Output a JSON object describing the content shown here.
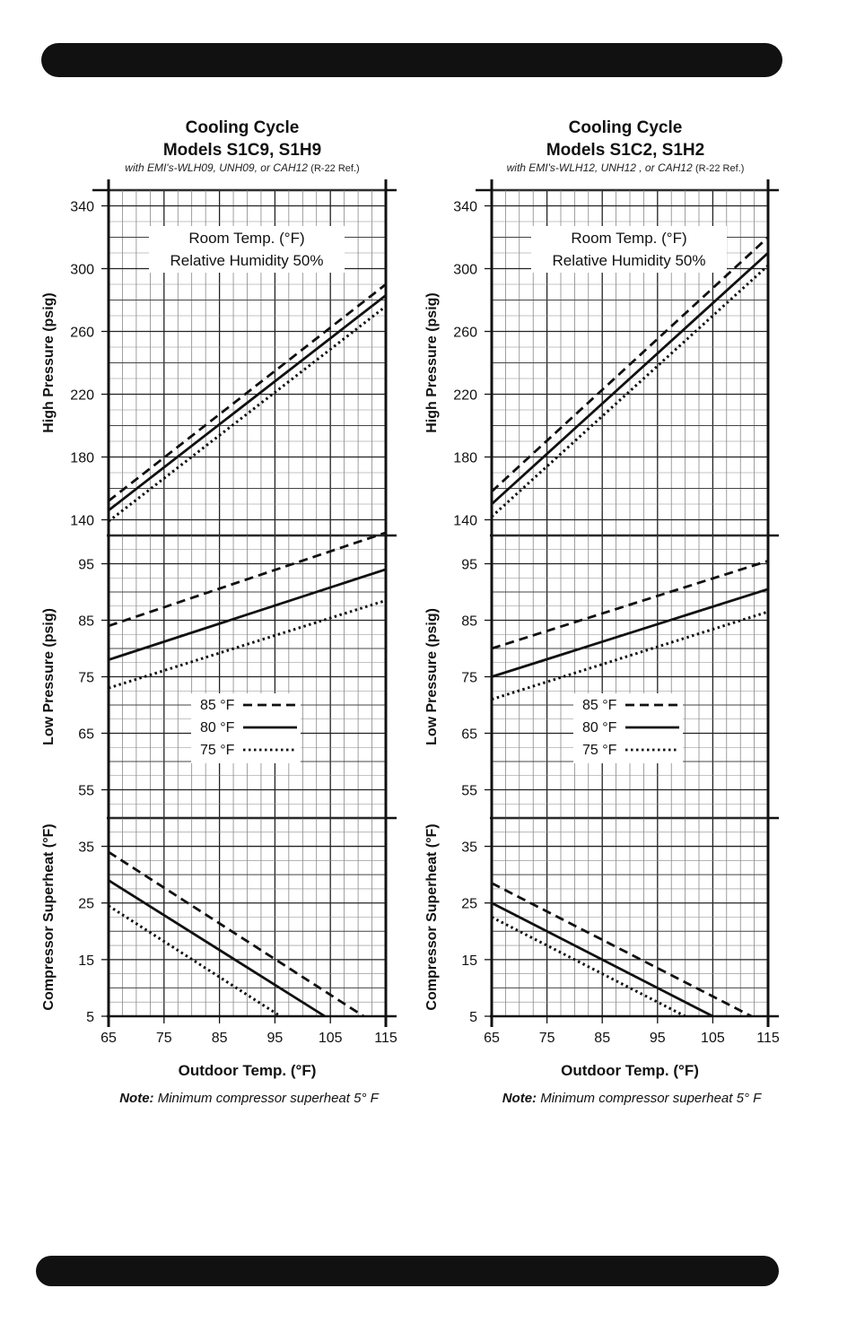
{
  "chart_data": [
    {
      "type": "line",
      "title": "Cooling Cycle",
      "subtitle": "Models S1C9, S1H9",
      "caption_main": "with EMI's-WLH09, UNH09, or CAH12 ",
      "caption_ref": "(R-22 Ref.)",
      "xlabel": "Outdoor Temp. (°F)",
      "xlim": [
        65,
        115
      ],
      "x_ticks": [
        "65",
        "75",
        "85",
        "95",
        "105",
        "115"
      ],
      "note_bold": "Note:",
      "note_text": " Minimum compressor superheat  5° F",
      "box_line1": "Room Temp. (°F)",
      "box_line2": "Relative Humidity 50%",
      "legend": [
        "85 °F",
        "80 °F",
        "75 °F"
      ],
      "panels": [
        {
          "name": "high",
          "ylabel": "High Pressure (psig)",
          "ylim": [
            130,
            350
          ],
          "y_ticks": [
            140,
            180,
            220,
            260,
            300,
            340
          ],
          "series": [
            {
              "style": "dashed",
              "points": [
                [
                  65,
                  152
                ],
                [
                  115,
                  290
                ]
              ]
            },
            {
              "style": "solid",
              "points": [
                [
                  65,
                  146
                ],
                [
                  115,
                  283
                ]
              ]
            },
            {
              "style": "dotted",
              "points": [
                [
                  65,
                  139
                ],
                [
                  115,
                  276
                ]
              ]
            }
          ]
        },
        {
          "name": "low",
          "ylabel": "Low Pressure (psig)",
          "ylim": [
            50,
            100
          ],
          "y_ticks": [
            55,
            65,
            75,
            85,
            95
          ],
          "series": [
            {
              "style": "dashed",
              "points": [
                [
                  65,
                  84
                ],
                [
                  115,
                  100.5
                ]
              ]
            },
            {
              "style": "solid",
              "points": [
                [
                  65,
                  78
                ],
                [
                  115,
                  94
                ]
              ]
            },
            {
              "style": "dotted",
              "points": [
                [
                  65,
                  73
                ],
                [
                  115,
                  88.5
                ]
              ]
            }
          ]
        },
        {
          "name": "superheat",
          "ylabel": "Compressor Superheat (°F)",
          "ylim": [
            5,
            40
          ],
          "y_ticks": [
            5,
            15,
            25,
            35
          ],
          "series": [
            {
              "style": "dashed",
              "points": [
                [
                  65,
                  34
                ],
                [
                  111,
                  5
                ]
              ]
            },
            {
              "style": "solid",
              "points": [
                [
                  65,
                  29
                ],
                [
                  104,
                  5
                ]
              ]
            },
            {
              "style": "dotted",
              "points": [
                [
                  65,
                  24.5
                ],
                [
                  96,
                  5
                ]
              ]
            }
          ]
        }
      ]
    },
    {
      "type": "line",
      "title": "Cooling Cycle",
      "subtitle": "Models S1C2, S1H2",
      "caption_main": "with EMI's-WLH12, UNH12 , or CAH12 ",
      "caption_ref": "(R-22 Ref.)",
      "xlabel": "Outdoor Temp. (°F)",
      "xlim": [
        65,
        115
      ],
      "x_ticks": [
        "65",
        "75",
        "85",
        "95",
        "105",
        "115"
      ],
      "note_bold": "Note:",
      "note_text": " Minimum compressor superheat  5° F",
      "box_line1": "Room Temp. (°F)",
      "box_line2": "Relative Humidity 50%",
      "legend": [
        "85 °F",
        "80 °F",
        "75 °F"
      ],
      "panels": [
        {
          "name": "high",
          "ylabel": "High Pressure (psig)",
          "ylim": [
            130,
            350
          ],
          "y_ticks": [
            140,
            180,
            220,
            260,
            300,
            340
          ],
          "series": [
            {
              "style": "dashed",
              "points": [
                [
                  65,
                  158
                ],
                [
                  115,
                  320
                ]
              ]
            },
            {
              "style": "solid",
              "points": [
                [
                  65,
                  150
                ],
                [
                  115,
                  310
                ]
              ]
            },
            {
              "style": "dotted",
              "points": [
                [
                  65,
                  142
                ],
                [
                  115,
                  302
                ]
              ]
            }
          ]
        },
        {
          "name": "low",
          "ylabel": "Low Pressure (psig)",
          "ylim": [
            50,
            100
          ],
          "y_ticks": [
            55,
            65,
            75,
            85,
            95
          ],
          "series": [
            {
              "style": "dashed",
              "points": [
                [
                  65,
                  80
                ],
                [
                  115,
                  95.5
                ]
              ]
            },
            {
              "style": "solid",
              "points": [
                [
                  65,
                  75
                ],
                [
                  115,
                  90.5
                ]
              ]
            },
            {
              "style": "dotted",
              "points": [
                [
                  65,
                  71
                ],
                [
                  115,
                  86.5
                ]
              ]
            }
          ]
        },
        {
          "name": "superheat",
          "ylabel": "Compressor Superheat (°F)",
          "ylim": [
            5,
            40
          ],
          "y_ticks": [
            5,
            15,
            25,
            35
          ],
          "series": [
            {
              "style": "dashed",
              "points": [
                [
                  65,
                  28.5
                ],
                [
                  112,
                  5
                ]
              ]
            },
            {
              "style": "solid",
              "points": [
                [
                  65,
                  25
                ],
                [
                  105,
                  5
                ]
              ]
            },
            {
              "style": "dotted",
              "points": [
                [
                  65,
                  22.5
                ],
                [
                  100,
                  5
                ]
              ]
            }
          ]
        }
      ]
    }
  ]
}
